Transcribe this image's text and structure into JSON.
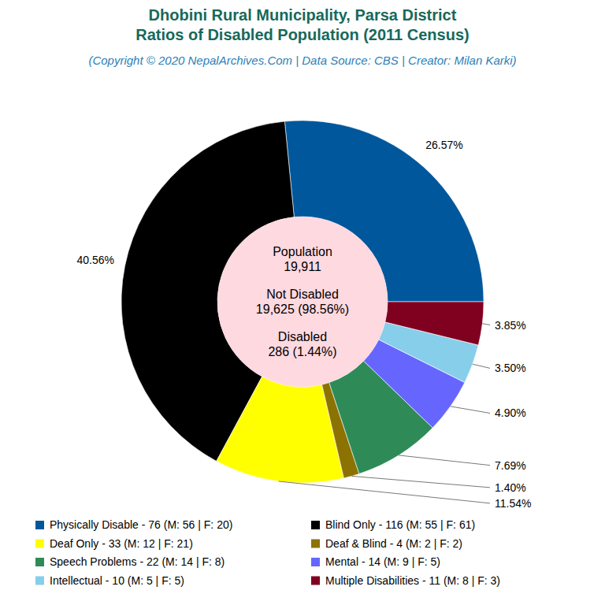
{
  "chart_data": {
    "type": "pie",
    "title": [
      "Dhobini Rural Municipality, Parsa District",
      "Ratios of Disabled Population (2011 Census)"
    ],
    "subtitle": "(Copyright © 2020 NepalArchives.Com | Data Source: CBS | Creator: Milan Karki)",
    "annotations": [
      "Population",
      "19,911",
      "Not Disabled",
      "19,625 (98.56%)",
      "Disabled",
      "286 (1.44%)"
    ],
    "categories": [
      "Physically Disable - 76 (M: 56 | F: 20)",
      "Blind Only - 116 (M: 55 | F: 61)",
      "Deaf Only - 33 (M: 12 | F: 21)",
      "Deaf & Blind - 4 (M: 2 | F: 2)",
      "Speech Problems - 22 (M: 14 | F: 8)",
      "Mental - 14 (M: 9 | F: 5)",
      "Intellectual - 10 (M: 5 | F: 5)",
      "Multiple Disabilities - 11 (M: 8 | F: 3)"
    ],
    "values": [
      26.57,
      40.56,
      11.54,
      1.4,
      7.69,
      4.9,
      3.5,
      3.85
    ],
    "value_labels": [
      "26.57%",
      "40.56%",
      "11.54%",
      "1.40%",
      "7.69%",
      "4.90%",
      "3.50%",
      "3.85%"
    ],
    "colors": [
      "#01579b",
      "#000000",
      "#ffff00",
      "#8c7200",
      "#2e8b57",
      "#6666ff",
      "#87ceeb",
      "#800020"
    ],
    "data_labels": true,
    "legend": "bottom"
  }
}
